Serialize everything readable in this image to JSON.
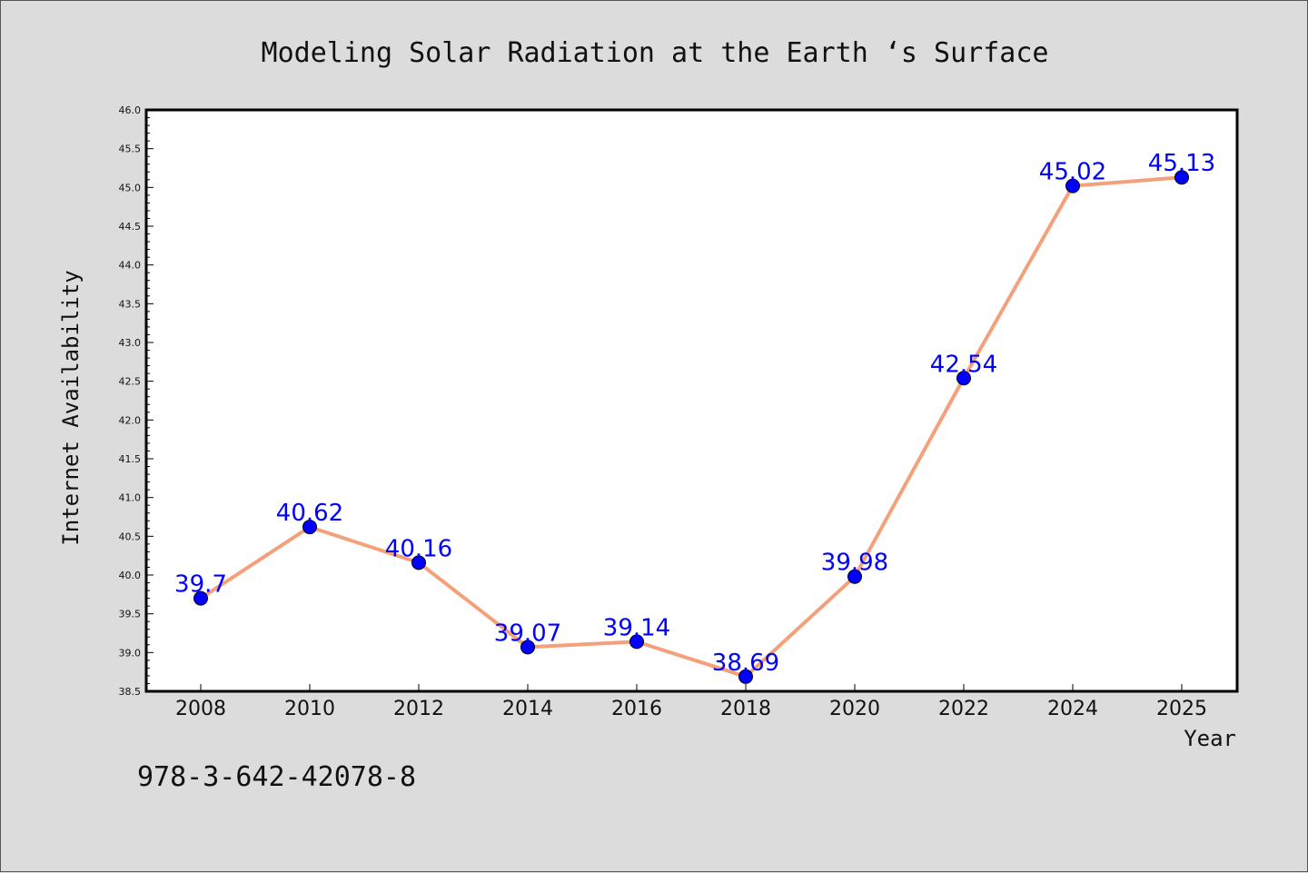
{
  "chart_data": {
    "type": "line",
    "title": "Modeling Solar Radiation at the Earth ‘s Surface",
    "xlabel": "Year",
    "ylabel": "Internet Availability",
    "categories": [
      "2008",
      "2010",
      "2012",
      "2014",
      "2016",
      "2018",
      "2020",
      "2022",
      "2024",
      "2025"
    ],
    "series": [
      {
        "values": [
          39.7,
          40.62,
          40.16,
          39.07,
          39.14,
          38.69,
          39.98,
          42.54,
          45.02,
          45.13
        ],
        "labels": [
          "39.7",
          "40.62",
          "40.16",
          "39.07",
          "39.14",
          "38.69",
          "39.98",
          "42.54",
          "45.02",
          "45.13"
        ]
      }
    ],
    "ylim": [
      38.5,
      46.0
    ],
    "yticks": [
      "38.5",
      "39.0",
      "39.5",
      "40.0",
      "40.5",
      "41.0",
      "41.5",
      "42.0",
      "42.5",
      "43.0",
      "43.5",
      "44.0",
      "44.5",
      "45.0",
      "45.5",
      "46.0"
    ],
    "grid": false,
    "line_color": "#f4a07a",
    "marker_color": "#0000ff",
    "label_color": "#0000ff"
  },
  "footnote": "978-3-642-42078-8"
}
